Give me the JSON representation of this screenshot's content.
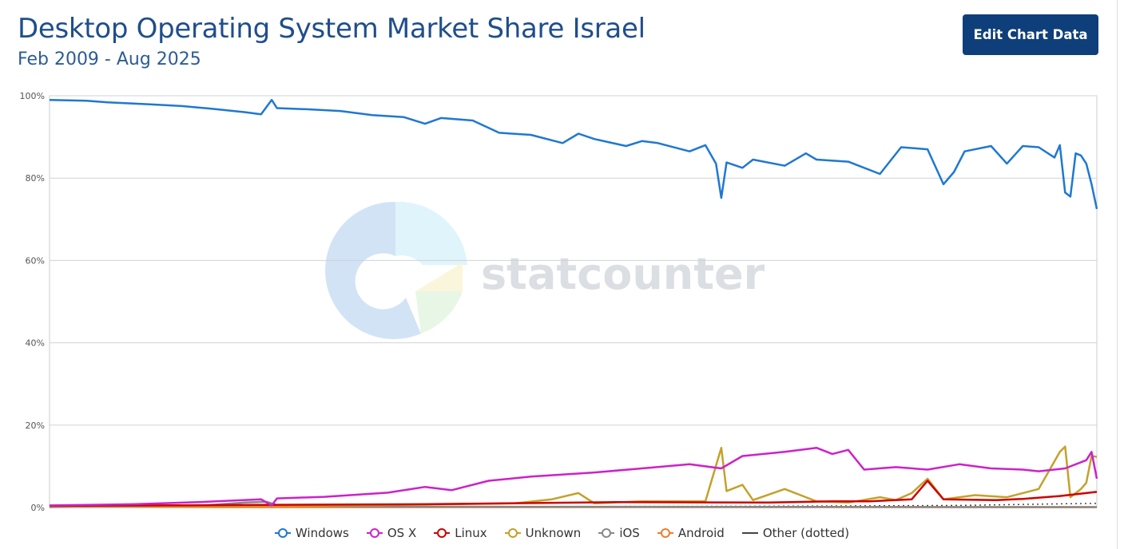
{
  "header": {
    "title": "Desktop Operating System Market Share Israel",
    "subtitle": "Feb 2009 - Aug 2025",
    "edit_button_label": "Edit Chart Data"
  },
  "watermark": {
    "text": "statcounter"
  },
  "legend": {
    "items": [
      {
        "label": "Windows",
        "color": "#1f78d1",
        "marker": "circle"
      },
      {
        "label": "OS X",
        "color": "#cc22c8",
        "marker": "circle"
      },
      {
        "label": "Linux",
        "color": "#d00000",
        "marker": "circle"
      },
      {
        "label": "Unknown",
        "color": "#c4a12a",
        "marker": "circle"
      },
      {
        "label": "iOS",
        "color": "#888888",
        "marker": "circle"
      },
      {
        "label": "Android",
        "color": "#f07d2a",
        "marker": "circle"
      },
      {
        "label": "Other (dotted)",
        "color": "#444444",
        "marker": "line"
      }
    ]
  },
  "chart_data": {
    "type": "line",
    "x_range": [
      "2009-02",
      "2025-08"
    ],
    "ylim": [
      0,
      100
    ],
    "y_ticks": [
      "0%",
      "20%",
      "40%",
      "60%",
      "80%",
      "100%"
    ],
    "grid": true,
    "legend_position": "bottom",
    "series": [
      {
        "name": "Windows",
        "color": "#1f78d1",
        "points": [
          [
            "2009-02",
            99.0
          ],
          [
            "2009-09",
            98.8
          ],
          [
            "2010-01",
            98.4
          ],
          [
            "2010-09",
            97.9
          ],
          [
            "2011-03",
            97.5
          ],
          [
            "2011-09",
            96.8
          ],
          [
            "2012-03",
            96.0
          ],
          [
            "2012-06",
            95.5
          ],
          [
            "2012-08",
            99.0
          ],
          [
            "2012-09",
            97.0
          ],
          [
            "2013-03",
            96.7
          ],
          [
            "2013-09",
            96.3
          ],
          [
            "2014-03",
            95.3
          ],
          [
            "2014-09",
            94.8
          ],
          [
            "2015-01",
            93.2
          ],
          [
            "2015-04",
            94.6
          ],
          [
            "2015-10",
            94.0
          ],
          [
            "2016-03",
            91.0
          ],
          [
            "2016-09",
            90.5
          ],
          [
            "2017-03",
            88.5
          ],
          [
            "2017-06",
            90.8
          ],
          [
            "2017-09",
            89.5
          ],
          [
            "2018-03",
            87.8
          ],
          [
            "2018-06",
            89.0
          ],
          [
            "2018-09",
            88.5
          ],
          [
            "2019-03",
            86.5
          ],
          [
            "2019-06",
            88.0
          ],
          [
            "2019-08",
            83.5
          ],
          [
            "2019-09",
            75.2
          ],
          [
            "2019-10",
            83.8
          ],
          [
            "2020-01",
            82.5
          ],
          [
            "2020-03",
            84.5
          ],
          [
            "2020-09",
            83.0
          ],
          [
            "2021-01",
            86.0
          ],
          [
            "2021-03",
            84.5
          ],
          [
            "2021-09",
            84.0
          ],
          [
            "2022-03",
            81.0
          ],
          [
            "2022-07",
            87.5
          ],
          [
            "2022-12",
            87.0
          ],
          [
            "2023-03",
            78.5
          ],
          [
            "2023-05",
            81.5
          ],
          [
            "2023-07",
            86.5
          ],
          [
            "2023-12",
            87.8
          ],
          [
            "2024-03",
            83.5
          ],
          [
            "2024-06",
            87.8
          ],
          [
            "2024-09",
            87.5
          ],
          [
            "2024-12",
            85.0
          ],
          [
            "2025-01",
            88.0
          ],
          [
            "2025-02",
            76.5
          ],
          [
            "2025-03",
            75.5
          ],
          [
            "2025-04",
            86.0
          ],
          [
            "2025-05",
            85.5
          ],
          [
            "2025-06",
            83.5
          ],
          [
            "2025-07",
            78.5
          ],
          [
            "2025-08",
            72.5
          ]
        ]
      },
      {
        "name": "OS X",
        "color": "#cc22c8",
        "points": [
          [
            "2009-02",
            0.5
          ],
          [
            "2010-06",
            0.8
          ],
          [
            "2011-06",
            1.3
          ],
          [
            "2012-06",
            2.0
          ],
          [
            "2012-08",
            0.5
          ],
          [
            "2012-09",
            2.2
          ],
          [
            "2013-06",
            2.6
          ],
          [
            "2014-06",
            3.6
          ],
          [
            "2015-01",
            5.0
          ],
          [
            "2015-06",
            4.2
          ],
          [
            "2016-01",
            6.5
          ],
          [
            "2016-09",
            7.5
          ],
          [
            "2017-09",
            8.5
          ],
          [
            "2018-06",
            9.5
          ],
          [
            "2019-03",
            10.5
          ],
          [
            "2019-09",
            9.5
          ],
          [
            "2020-01",
            12.5
          ],
          [
            "2020-09",
            13.5
          ],
          [
            "2021-03",
            14.5
          ],
          [
            "2021-06",
            13.0
          ],
          [
            "2021-09",
            14.0
          ],
          [
            "2021-12",
            9.2
          ],
          [
            "2022-06",
            9.8
          ],
          [
            "2022-12",
            9.2
          ],
          [
            "2023-06",
            10.5
          ],
          [
            "2023-12",
            9.5
          ],
          [
            "2024-06",
            9.2
          ],
          [
            "2024-09",
            8.8
          ],
          [
            "2025-02",
            9.5
          ],
          [
            "2025-06",
            11.5
          ],
          [
            "2025-07",
            13.5
          ],
          [
            "2025-08",
            7.0
          ]
        ]
      },
      {
        "name": "Linux",
        "color": "#d00000",
        "points": [
          [
            "2009-02",
            0.4
          ],
          [
            "2012-01",
            0.6
          ],
          [
            "2015-01",
            0.8
          ],
          [
            "2018-01",
            1.3
          ],
          [
            "2020-06",
            1.2
          ],
          [
            "2021-06",
            1.5
          ],
          [
            "2022-01",
            1.5
          ],
          [
            "2022-09",
            2.0
          ],
          [
            "2022-12",
            6.5
          ],
          [
            "2023-03",
            2.0
          ],
          [
            "2024-01",
            1.8
          ],
          [
            "2024-06",
            2.1
          ],
          [
            "2025-01",
            2.8
          ],
          [
            "2025-06",
            3.5
          ],
          [
            "2025-08",
            3.8
          ]
        ]
      },
      {
        "name": "Unknown",
        "color": "#c4a12a",
        "points": [
          [
            "2009-02",
            0.3
          ],
          [
            "2014-01",
            0.5
          ],
          [
            "2016-06",
            1.0
          ],
          [
            "2017-01",
            2.0
          ],
          [
            "2017-06",
            3.5
          ],
          [
            "2017-09",
            1.0
          ],
          [
            "2018-06",
            1.5
          ],
          [
            "2019-06",
            1.5
          ],
          [
            "2019-09",
            14.5
          ],
          [
            "2019-10",
            4.0
          ],
          [
            "2020-01",
            5.5
          ],
          [
            "2020-03",
            1.8
          ],
          [
            "2020-09",
            4.5
          ],
          [
            "2021-03",
            1.5
          ],
          [
            "2021-09",
            1.2
          ],
          [
            "2022-03",
            2.5
          ],
          [
            "2022-06",
            1.8
          ],
          [
            "2022-09",
            3.5
          ],
          [
            "2022-12",
            7.0
          ],
          [
            "2023-03",
            2.0
          ],
          [
            "2023-09",
            3.0
          ],
          [
            "2024-03",
            2.5
          ],
          [
            "2024-09",
            4.5
          ],
          [
            "2025-01",
            13.5
          ],
          [
            "2025-02",
            14.8
          ],
          [
            "2025-03",
            2.5
          ],
          [
            "2025-05",
            4.5
          ],
          [
            "2025-06",
            6.0
          ],
          [
            "2025-07",
            12.5
          ],
          [
            "2025-08",
            12.3
          ]
        ]
      },
      {
        "name": "iOS",
        "color": "#888888",
        "points": [
          [
            "2009-02",
            0.1
          ],
          [
            "2011-06",
            0.4
          ],
          [
            "2012-03",
            1.2
          ],
          [
            "2012-07",
            1.4
          ],
          [
            "2012-09",
            0.6
          ],
          [
            "2014-01",
            0.2
          ],
          [
            "2025-08",
            0.1
          ]
        ]
      },
      {
        "name": "Android",
        "color": "#f07d2a",
        "points": [
          [
            "2009-02",
            0.2
          ],
          [
            "2009-07",
            0.3
          ],
          [
            "2009-09",
            0.2
          ],
          [
            "2012-01",
            0.1
          ],
          [
            "2025-08",
            0.1
          ]
        ]
      },
      {
        "name": "Other (dotted)",
        "color": "#444444",
        "dotted": true,
        "points": [
          [
            "2009-02",
            0.3
          ],
          [
            "2015-01",
            0.2
          ],
          [
            "2020-01",
            0.3
          ],
          [
            "2023-06",
            0.5
          ],
          [
            "2025-01",
            0.9
          ],
          [
            "2025-08",
            1.0
          ]
        ]
      }
    ]
  }
}
